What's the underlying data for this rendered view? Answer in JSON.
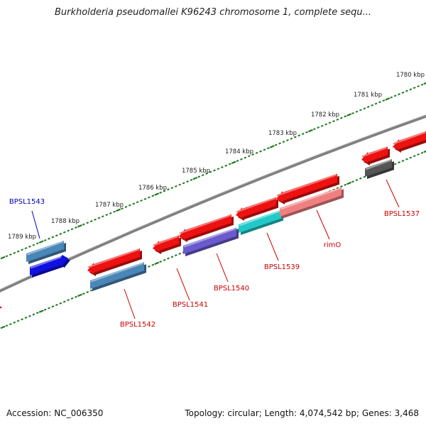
{
  "title": "Burkholderia pseudomallei K96243 chromosome 1, complete sequ...",
  "footer": {
    "accession": "Accession: NC_006350",
    "topology": "Topology: circular; Length: 4,074,542 bp; Genes: 3,468"
  },
  "ticks": [
    "1780 kbp",
    "1781 kbp",
    "1782 kbp",
    "1783 kbp",
    "1784 kbp",
    "1785 kbp",
    "1786 kbp",
    "1787 kbp",
    "1788 kbp",
    "1789 kbp"
  ],
  "gene_labels": [
    {
      "name": "BPSL1543",
      "color": "#0000bb"
    },
    {
      "name": "BPSL1542",
      "color": "#cc0000"
    },
    {
      "name": "BPSL1541",
      "color": "#cc0000"
    },
    {
      "name": "BPSL1540",
      "color": "#cc0000"
    },
    {
      "name": "BPSL1539",
      "color": "#cc0000"
    },
    {
      "name": "rimO",
      "color": "#cc0000"
    },
    {
      "name": "BPSL1537",
      "color": "#cc0000"
    }
  ],
  "colors": {
    "backbone": "#808080",
    "tick_dots": "#1f7a1f",
    "gene_red": "#ee1111",
    "gene_steelblue": "#4a86b8",
    "gene_blue": "#1010e0",
    "gene_purple": "#6a5acd",
    "gene_cyan": "#22c9c9",
    "gene_pink": "#f08080",
    "gene_gray": "#555555",
    "label_red": "#cc0000",
    "label_blue": "#0000bb"
  }
}
